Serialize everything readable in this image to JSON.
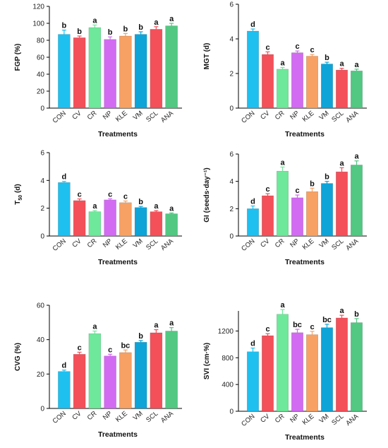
{
  "colors": {
    "CON": "#1ec0f0",
    "CV": "#f4505a",
    "CR": "#6ee89a",
    "NP": "#d26bf2",
    "KLE": "#f7a164",
    "VM": "#0ea4d8",
    "SCL": "#f4505a",
    "ANA": "#52c882",
    "axis": "#000000"
  },
  "chart_data": [
    {
      "type": "bar",
      "title": "",
      "xlabel": "Treatments",
      "ylabel": "FGP (%)",
      "ylabel_main": "FGP (%)",
      "ylabel_sub": "",
      "ylabel_tail": "",
      "categories": [
        "CON",
        "CV",
        "CR",
        "NP",
        "KLE",
        "VM",
        "SCL",
        "ANA"
      ],
      "values": [
        87,
        83,
        95,
        81,
        85,
        87,
        93,
        97
      ],
      "errors": [
        5,
        2,
        3,
        3,
        3,
        3,
        3,
        3
      ],
      "letters": [
        "b",
        "b",
        "a",
        "b",
        "b",
        "b",
        "a",
        "a"
      ],
      "ylim": [
        0,
        120
      ],
      "yticks": [
        "0",
        "20",
        "40",
        "60",
        "80",
        "100",
        "120"
      ],
      "ytick_values": [
        0,
        20,
        40,
        60,
        80,
        100,
        120
      ]
    },
    {
      "type": "bar",
      "title": "",
      "xlabel": "Treatments",
      "ylabel": "MGT (d)",
      "ylabel_main": "MGT (d)",
      "ylabel_sub": "",
      "ylabel_tail": "",
      "categories": [
        "CON",
        "CV",
        "CR",
        "NP",
        "KLE",
        "VM",
        "SCL",
        "ANA"
      ],
      "values": [
        4.45,
        3.1,
        2.25,
        3.2,
        3.0,
        2.55,
        2.2,
        2.15
      ],
      "errors": [
        0.12,
        0.15,
        0.1,
        0.1,
        0.1,
        0.1,
        0.1,
        0.1
      ],
      "letters": [
        "d",
        "c",
        "a",
        "c",
        "c",
        "b",
        "a",
        "a"
      ],
      "ylim": [
        0,
        6
      ],
      "yticks": [
        "0",
        "2",
        "4",
        "6"
      ],
      "ytick_values": [
        0,
        2,
        4,
        6
      ]
    },
    {
      "type": "bar",
      "title": "",
      "xlabel": "Treatments",
      "ylabel": "T50 (d)",
      "ylabel_main": "T",
      "ylabel_sub": "50",
      "ylabel_tail": " (d)",
      "categories": [
        "CON",
        "CV",
        "CR",
        "NP",
        "KLE",
        "VM",
        "SCL",
        "ANA"
      ],
      "values": [
        3.85,
        2.55,
        1.75,
        2.6,
        2.4,
        2.05,
        1.75,
        1.6
      ],
      "errors": [
        0.08,
        0.12,
        0.08,
        0.08,
        0.12,
        0.08,
        0.08,
        0.06
      ],
      "letters": [
        "d",
        "c",
        "a",
        "c",
        "c",
        "b",
        "a",
        "a"
      ],
      "ylim": [
        0,
        6
      ],
      "yticks": [
        "0",
        "2",
        "4",
        "6"
      ],
      "ytick_values": [
        0,
        2,
        4,
        6
      ]
    },
    {
      "type": "bar",
      "title": "",
      "xlabel": "Treatments",
      "ylabel": "GI (seeds·day⁻¹)",
      "ylabel_main": "GI (seeds·day⁻¹)",
      "ylabel_sub": "",
      "ylabel_tail": "",
      "categories": [
        "CON",
        "CV",
        "CR",
        "NP",
        "KLE",
        "VM",
        "SCL",
        "ANA"
      ],
      "values": [
        2.0,
        2.95,
        4.75,
        2.8,
        3.25,
        3.85,
        4.7,
        5.2
      ],
      "errors": [
        0.2,
        0.15,
        0.3,
        0.2,
        0.25,
        0.15,
        0.3,
        0.3
      ],
      "letters": [
        "d",
        "c",
        "a",
        "c",
        "b",
        "b",
        "a",
        "a"
      ],
      "ylim": [
        0,
        6
      ],
      "yticks": [
        "0",
        "2",
        "4",
        "6"
      ],
      "ytick_values": [
        0,
        2,
        4,
        6
      ]
    },
    {
      "type": "bar",
      "title": "",
      "xlabel": "Treatments",
      "ylabel": "CVG (%)",
      "ylabel_main": "CVG (%)",
      "ylabel_sub": "",
      "ylabel_tail": "",
      "categories": [
        "CON",
        "CV",
        "CR",
        "NP",
        "KLE",
        "VM",
        "SCL",
        "ANA"
      ],
      "values": [
        21.5,
        31.5,
        43.5,
        30.5,
        32.5,
        38.5,
        44,
        45
      ],
      "errors": [
        0.8,
        1.2,
        1.5,
        1.0,
        1.5,
        1.0,
        1.8,
        2.0
      ],
      "letters": [
        "d",
        "c",
        "a",
        "c",
        "bc",
        "b",
        "a",
        "a"
      ],
      "ylim": [
        0,
        60
      ],
      "yticks": [
        "0",
        "20",
        "40",
        "60"
      ],
      "ytick_values": [
        0,
        20,
        40,
        60
      ]
    },
    {
      "type": "bar",
      "title": "",
      "xlabel": "Treatments",
      "ylabel": "SVI (cm·%)",
      "ylabel_main": "SVI (cm·%)",
      "ylabel_sub": "",
      "ylabel_tail": "",
      "categories": [
        "CON",
        "CV",
        "CR",
        "NP",
        "KLE",
        "VM",
        "SCL",
        "ANA"
      ],
      "values": [
        890,
        1130,
        1450,
        1175,
        1145,
        1250,
        1395,
        1325
      ],
      "errors": [
        55,
        30,
        70,
        50,
        50,
        50,
        40,
        60
      ],
      "letters": [
        "d",
        "c",
        "a",
        "bc",
        "c",
        "bc",
        "a",
        "b"
      ],
      "ylim": [
        0,
        1500
      ],
      "yticks": [
        "0",
        "400",
        "800",
        "1200"
      ],
      "ytick_values": [
        0,
        400,
        800,
        1200
      ]
    }
  ]
}
